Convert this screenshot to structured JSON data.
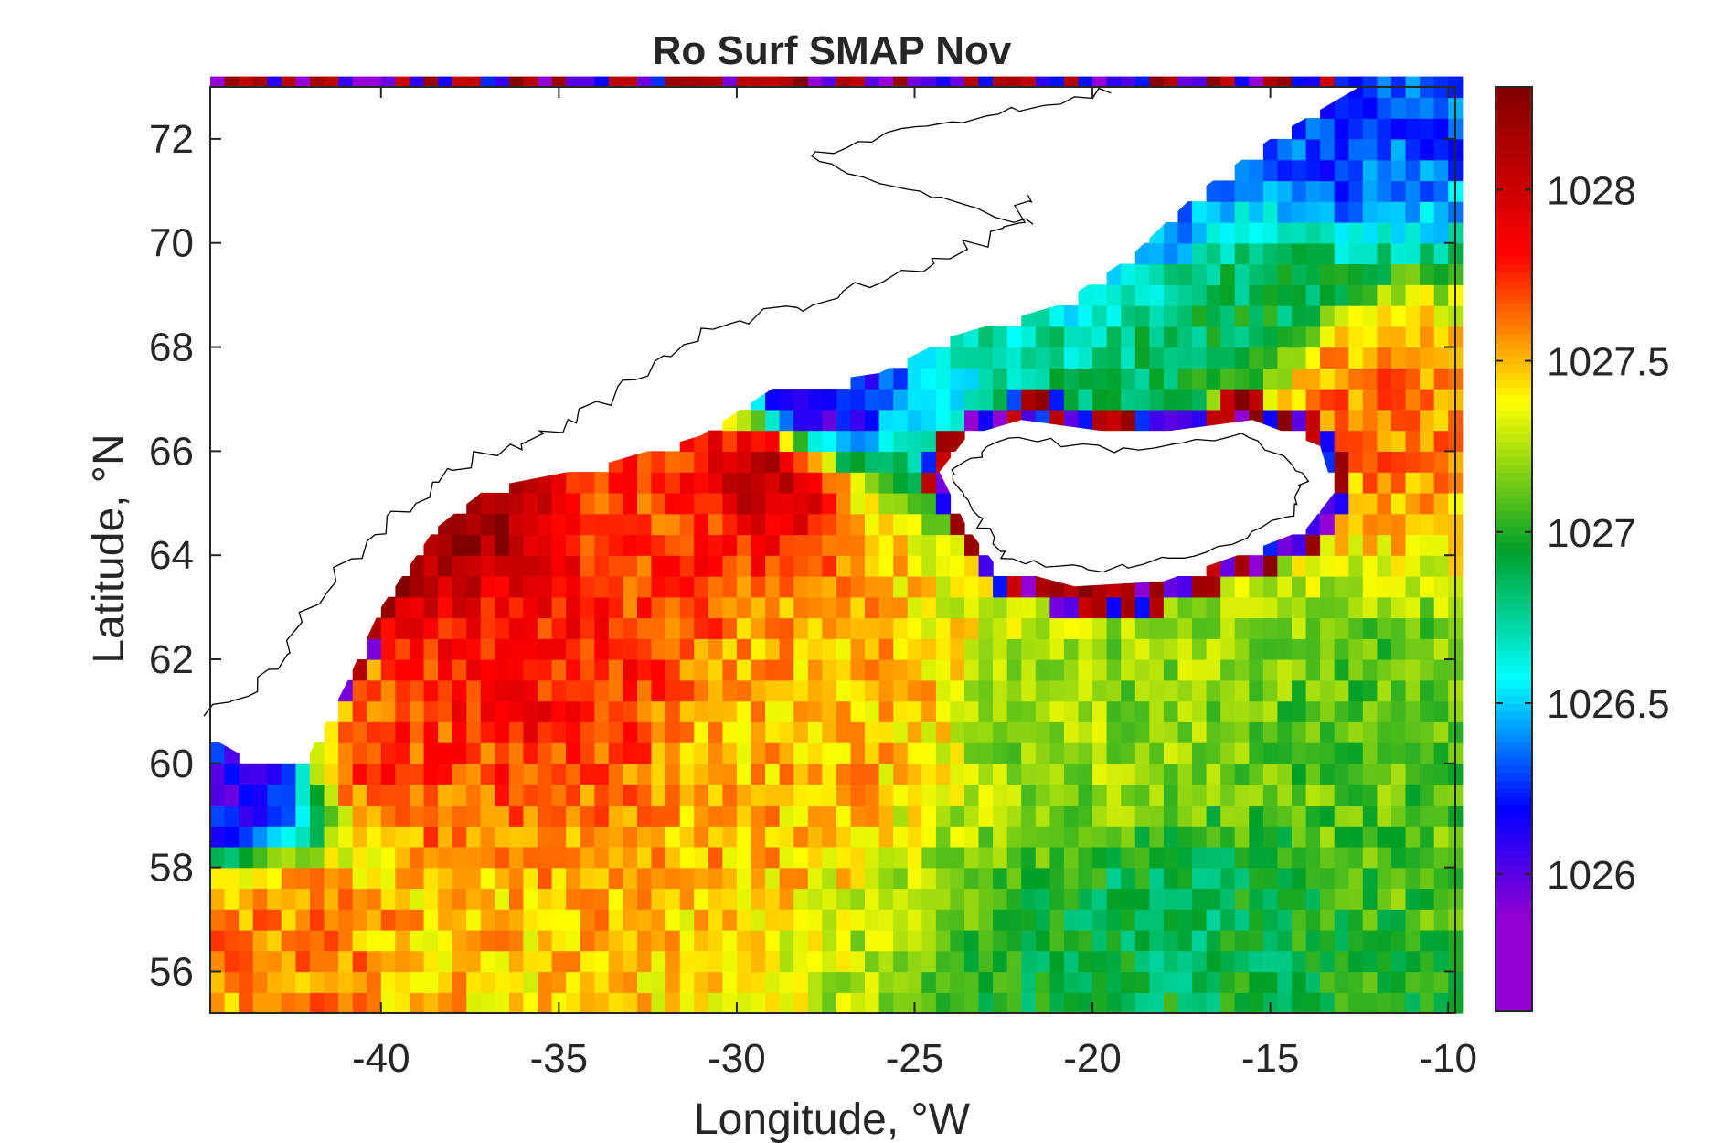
{
  "chart_data": {
    "type": "heatmap",
    "title": "Ro Surf SMAP Nov",
    "xlabel": "Longitude, °W",
    "ylabel": "Latitude, °N",
    "xlim": [
      -44.8,
      -9.8
    ],
    "ylim": [
      55.2,
      73.0
    ],
    "x_ticks": [
      -40,
      -35,
      -30,
      -25,
      -20,
      -15,
      -10
    ],
    "x_tick_labels": [
      "-40",
      "-35",
      "-30",
      "-25",
      "-20",
      "-15",
      "-10"
    ],
    "y_ticks": [
      56,
      58,
      60,
      62,
      64,
      66,
      68,
      70,
      72
    ],
    "y_tick_labels": [
      "56",
      "58",
      "60",
      "62",
      "64",
      "66",
      "68",
      "70",
      "72"
    ],
    "colorbar": {
      "clim": [
        1025.6,
        1028.3
      ],
      "ticks": [
        1026,
        1026.5,
        1027,
        1027.5,
        1028
      ],
      "tick_labels": [
        "1026",
        "1026.5",
        "1027",
        "1027.5",
        "1028"
      ],
      "colormap": "jet-like (violet-blue-cyan-green-yellow-red-darkred)"
    },
    "grid": false,
    "cell_size_deg": 0.4,
    "field_description_points": [
      {
        "lon": -36,
        "lat": 62,
        "value": 1027.8
      },
      {
        "lon": -40,
        "lat": 60,
        "value": 1027.7
      },
      {
        "lon": -32,
        "lat": 64.5,
        "value": 1027.7
      },
      {
        "lon": -29,
        "lat": 65.8,
        "value": 1028.2
      },
      {
        "lon": -38,
        "lat": 64.9,
        "value": 1028.2
      },
      {
        "lon": -28,
        "lat": 66.7,
        "value": 1026.0
      },
      {
        "lon": -28,
        "lat": 61,
        "value": 1027.5
      },
      {
        "lon": -20,
        "lat": 60,
        "value": 1027.2
      },
      {
        "lon": -18,
        "lat": 57,
        "value": 1026.9
      },
      {
        "lon": -12,
        "lat": 60,
        "value": 1027.1
      },
      {
        "lon": -16,
        "lat": 69,
        "value": 1026.9
      },
      {
        "lon": -18,
        "lat": 70.5,
        "value": 1026.4
      },
      {
        "lon": -13,
        "lat": 72,
        "value": 1026.3
      },
      {
        "lon": -12,
        "lat": 67,
        "value": 1027.6
      },
      {
        "lon": -43,
        "lat": 57,
        "value": 1027.6
      },
      {
        "lon": -44,
        "lat": 59.5,
        "value": 1026.1
      }
    ]
  },
  "colors": {
    "land": "#ffffff",
    "coastline": "#000000",
    "axes": "#262626"
  }
}
